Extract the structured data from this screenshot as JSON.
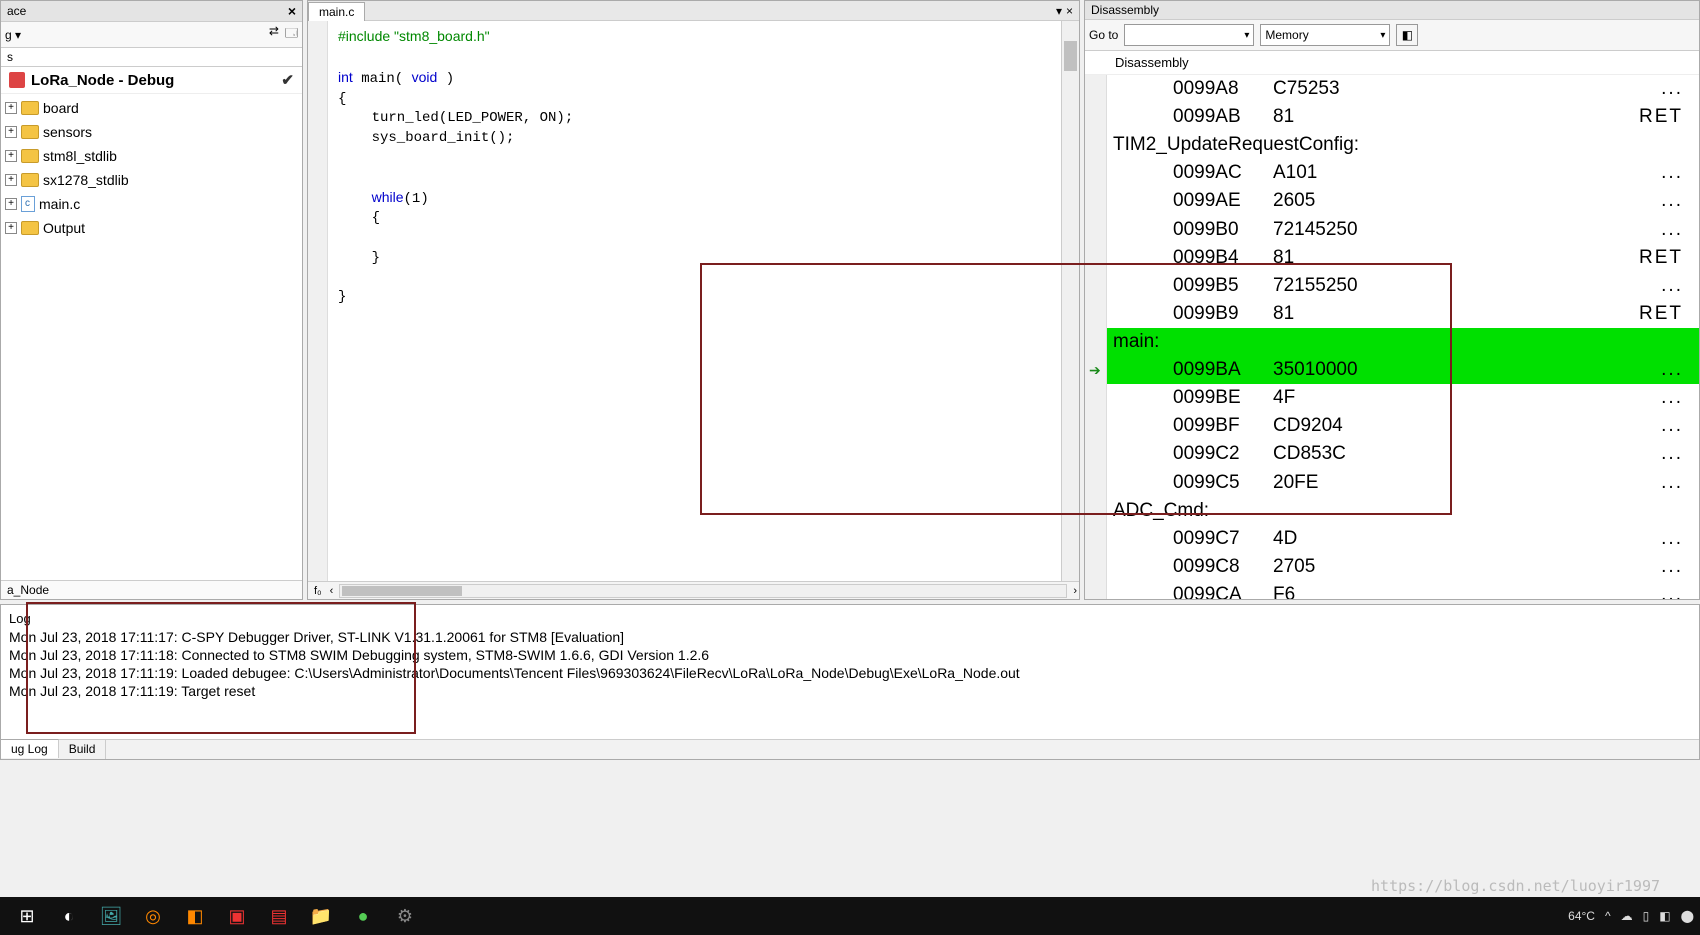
{
  "workspace": {
    "title": "ace",
    "dropdown": "g",
    "project": "LoRa_Node - Debug",
    "items": [
      {
        "name": "board",
        "icon": "folder"
      },
      {
        "name": "sensors",
        "icon": "folder"
      },
      {
        "name": "stm8l_stdlib",
        "icon": "folder"
      },
      {
        "name": "sx1278_stdlib",
        "icon": "folder"
      },
      {
        "name": "main.c",
        "icon": "file"
      },
      {
        "name": "Output",
        "icon": "folder"
      }
    ],
    "footer": "a_Node"
  },
  "editor": {
    "tab": "main.c",
    "code_lines": [
      {
        "t": "#include \"stm8_board.h\"",
        "c": "pp"
      },
      {
        "t": "",
        "c": ""
      },
      {
        "t": "int main( void )",
        "c": "kw0"
      },
      {
        "t": "{",
        "c": ""
      },
      {
        "t": "    turn_led(LED_POWER, ON);",
        "c": ""
      },
      {
        "t": "    sys_board_init();",
        "c": ""
      },
      {
        "t": "",
        "c": ""
      },
      {
        "t": "",
        "c": ""
      },
      {
        "t": "    while(1)",
        "c": "kw1"
      },
      {
        "t": "    {",
        "c": ""
      },
      {
        "t": "",
        "c": ""
      },
      {
        "t": "    }",
        "c": ""
      },
      {
        "t": "",
        "c": ""
      },
      {
        "t": "}",
        "c": ""
      }
    ]
  },
  "disasm": {
    "title": "Disassembly",
    "goto_label": "Go to",
    "memory_label": "Memory",
    "sub": "Disassembly",
    "highlight_color": "#00e000",
    "box_color": "#7a1e1e",
    "lines": [
      {
        "addr": "0099A8",
        "bytes": "C75253",
        "mn": "...",
        "lbl": false,
        "hl": false
      },
      {
        "addr": "0099AB",
        "bytes": "81",
        "mn": "RET",
        "lbl": false,
        "hl": false
      },
      {
        "addr": "TIM2_UpdateRequestConfig:",
        "bytes": "",
        "mn": "",
        "lbl": true,
        "hl": false
      },
      {
        "addr": "0099AC",
        "bytes": "A101",
        "mn": "...",
        "lbl": false,
        "hl": false
      },
      {
        "addr": "0099AE",
        "bytes": "2605",
        "mn": "...",
        "lbl": false,
        "hl": false
      },
      {
        "addr": "0099B0",
        "bytes": "72145250",
        "mn": "...",
        "lbl": false,
        "hl": false
      },
      {
        "addr": "0099B4",
        "bytes": "81",
        "mn": "RET",
        "lbl": false,
        "hl": false
      },
      {
        "addr": "0099B5",
        "bytes": "72155250",
        "mn": "...",
        "lbl": false,
        "hl": false
      },
      {
        "addr": "0099B9",
        "bytes": "81",
        "mn": "RET",
        "lbl": false,
        "hl": false
      },
      {
        "addr": "main:",
        "bytes": "",
        "mn": "",
        "lbl": true,
        "hl": true
      },
      {
        "addr": "0099BA",
        "bytes": "35010000",
        "mn": "...",
        "lbl": false,
        "hl": true,
        "arrow": true
      },
      {
        "addr": "0099BE",
        "bytes": "4F",
        "mn": "...",
        "lbl": false,
        "hl": false
      },
      {
        "addr": "0099BF",
        "bytes": "CD9204",
        "mn": "...",
        "lbl": false,
        "hl": false
      },
      {
        "addr": "0099C2",
        "bytes": "CD853C",
        "mn": "...",
        "lbl": false,
        "hl": false
      },
      {
        "addr": "0099C5",
        "bytes": "20FE",
        "mn": "...",
        "lbl": false,
        "hl": false
      },
      {
        "addr": "ADC_Cmd:",
        "bytes": "",
        "mn": "",
        "lbl": true,
        "hl": false
      },
      {
        "addr": "0099C7",
        "bytes": "4D",
        "mn": "...",
        "lbl": false,
        "hl": false
      },
      {
        "addr": "0099C8",
        "bytes": "2705",
        "mn": "...",
        "lbl": false,
        "hl": false
      },
      {
        "addr": "0099CA",
        "bytes": "F6",
        "mn": "...",
        "lbl": false,
        "hl": false
      }
    ]
  },
  "log": {
    "title": "Log",
    "lines": [
      "Mon Jul 23, 2018 17:11:17: C-SPY Debugger Driver, ST-LINK V1.31.1.20061 for STM8 [Evaluation]",
      "Mon Jul 23, 2018 17:11:18: Connected to STM8 SWIM Debugging system, STM8-SWIM 1.6.6, GDI Version 1.2.6",
      "Mon Jul 23, 2018 17:11:19: Loaded debugee: C:\\Users\\Administrator\\Documents\\Tencent Files\\969303624\\FileRecv\\LoRa\\LoRa_Node\\Debug\\Exe\\LoRa_Node.out",
      "Mon Jul 23, 2018 17:11:19: Target reset"
    ],
    "tabs": [
      "ug Log",
      "Build"
    ]
  },
  "taskbar": {
    "temp": "64°C",
    "items": [
      "⊞",
      "◐",
      "🖼",
      "◎",
      "◧",
      "▣",
      "▤",
      "📁",
      "●",
      "⚙"
    ]
  },
  "watermark": "https://blog.csdn.net/luoyir1997"
}
